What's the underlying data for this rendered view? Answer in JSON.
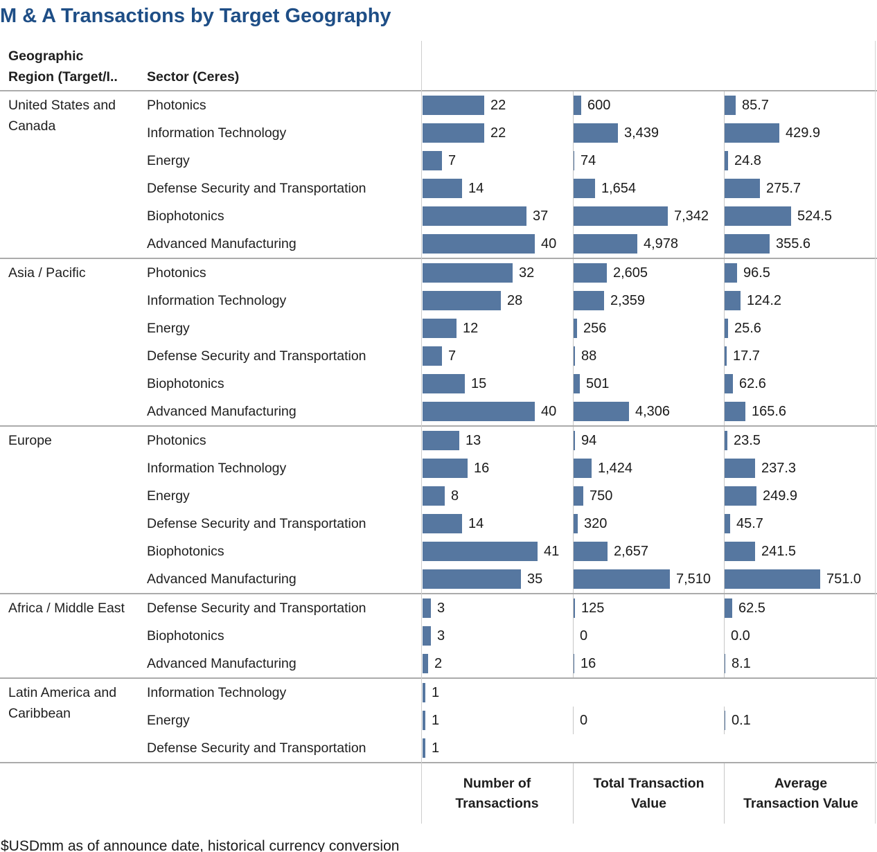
{
  "page": {
    "title": "M & A Transactions by Target Geography",
    "caption": "$USDmm as of announce date, historical currency conversion"
  },
  "chart_data": {
    "type": "bar",
    "title": "M & A Transactions by Target Geography",
    "footnote": "$USDmm as of announce date, historical currency conversion",
    "bar_color": "#5677A0",
    "grid": "group separators only, no axis ticks, value labels at bar ends",
    "header": {
      "region_lines": [
        "Geographic",
        "Region (Target/I.."
      ],
      "sector": "Sector (Ceres)"
    },
    "measures": [
      {
        "name": "Number of Transactions",
        "label_lines": [
          "Number of",
          "Transactions"
        ],
        "format": "int",
        "axis_max": 41
      },
      {
        "name": "Total Transaction Value",
        "label_lines": [
          "Total Transaction",
          "Value"
        ],
        "format": "comma",
        "axis_max": 7510
      },
      {
        "name": "Average Transaction Value",
        "label_lines": [
          "Average",
          "Transaction Value"
        ],
        "format": "dec1",
        "axis_max": 751
      }
    ],
    "groups": [
      {
        "region": "United States and Canada",
        "rows": [
          {
            "sector": "Photonics",
            "values": [
              22,
              600,
              85.7
            ]
          },
          {
            "sector": "Information Technology",
            "values": [
              22,
              3439,
              429.9
            ]
          },
          {
            "sector": "Energy",
            "values": [
              7,
              74,
              24.8
            ]
          },
          {
            "sector": "Defense Security and Transportation",
            "values": [
              14,
              1654,
              275.7
            ]
          },
          {
            "sector": "Biophotonics",
            "values": [
              37,
              7342,
              524.5
            ]
          },
          {
            "sector": "Advanced Manufacturing",
            "values": [
              40,
              4978,
              355.6
            ]
          }
        ]
      },
      {
        "region": "Asia / Pacific",
        "rows": [
          {
            "sector": "Photonics",
            "values": [
              32,
              2605,
              96.5
            ]
          },
          {
            "sector": "Information Technology",
            "values": [
              28,
              2359,
              124.2
            ]
          },
          {
            "sector": "Energy",
            "values": [
              12,
              256,
              25.6
            ]
          },
          {
            "sector": "Defense Security and Transportation",
            "values": [
              7,
              88,
              17.7
            ]
          },
          {
            "sector": "Biophotonics",
            "values": [
              15,
              501,
              62.6
            ]
          },
          {
            "sector": "Advanced Manufacturing",
            "values": [
              40,
              4306,
              165.6
            ]
          }
        ]
      },
      {
        "region": "Europe",
        "rows": [
          {
            "sector": "Photonics",
            "values": [
              13,
              94,
              23.5
            ]
          },
          {
            "sector": "Information Technology",
            "values": [
              16,
              1424,
              237.3
            ]
          },
          {
            "sector": "Energy",
            "values": [
              8,
              750,
              249.9
            ]
          },
          {
            "sector": "Defense Security and Transportation",
            "values": [
              14,
              320,
              45.7
            ]
          },
          {
            "sector": "Biophotonics",
            "values": [
              41,
              2657,
              241.5
            ]
          },
          {
            "sector": "Advanced Manufacturing",
            "values": [
              35,
              7510,
              751.0
            ]
          }
        ]
      },
      {
        "region": "Africa / Middle East",
        "rows": [
          {
            "sector": "Defense Security and Transportation",
            "values": [
              3,
              125,
              62.5
            ]
          },
          {
            "sector": "Biophotonics",
            "values": [
              3,
              0,
              0.0
            ]
          },
          {
            "sector": "Advanced Manufacturing",
            "values": [
              2,
              16,
              8.1
            ]
          }
        ]
      },
      {
        "region": "Latin America and Caribbean",
        "rows": [
          {
            "sector": "Information Technology",
            "values": [
              1,
              null,
              null
            ]
          },
          {
            "sector": "Energy",
            "values": [
              1,
              0,
              0.1
            ]
          },
          {
            "sector": "Defense Security and Transportation",
            "values": [
              1,
              null,
              null
            ]
          }
        ]
      }
    ]
  }
}
